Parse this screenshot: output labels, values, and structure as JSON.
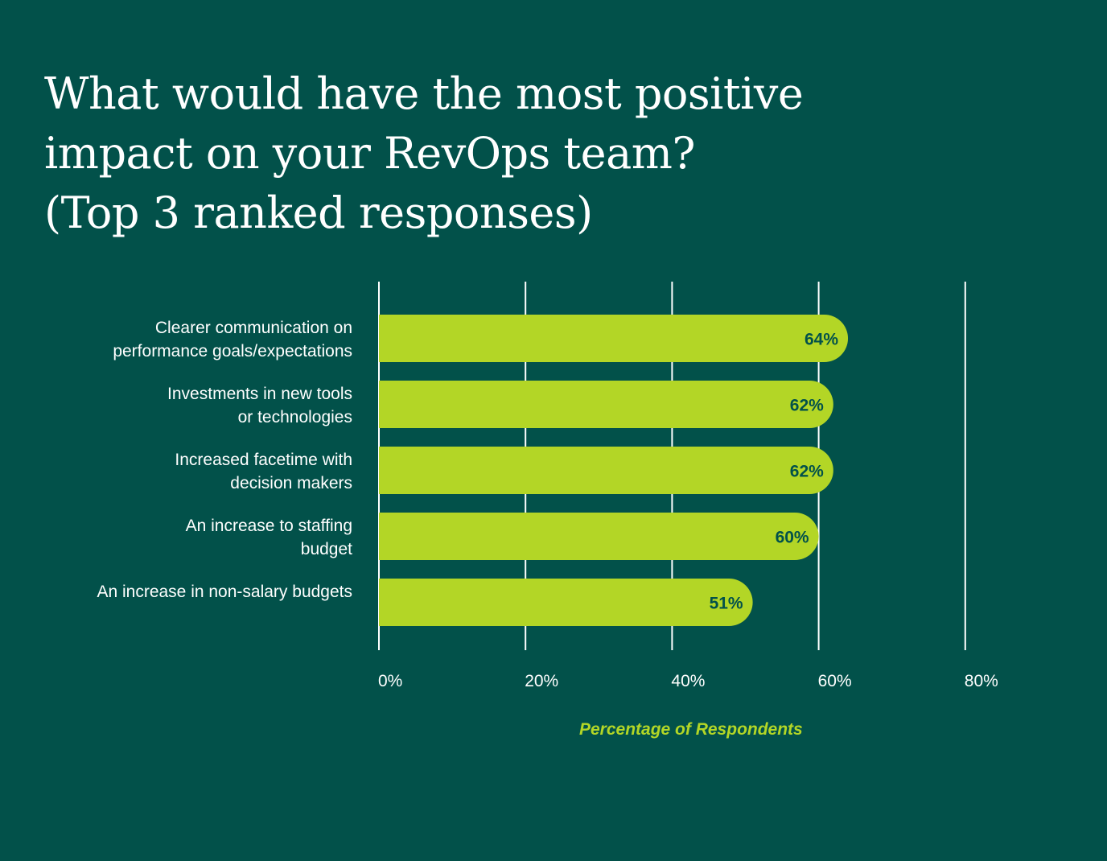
{
  "title_lines": [
    "What would have the most positive",
    "impact on your RevOps team?",
    "(Top 3 ranked responses)"
  ],
  "chart_data": {
    "type": "bar",
    "orientation": "horizontal",
    "title": "What would have the most positive impact on your RevOps team? (Top 3 ranked responses)",
    "categories": [
      [
        "Clearer communication on",
        "performance goals/expectations"
      ],
      [
        "Investments in new tools",
        "or technologies"
      ],
      [
        "Increased facetime with",
        "decision makers"
      ],
      [
        "An increase to staffing",
        "budget"
      ],
      [
        "An increase in non-salary budgets"
      ]
    ],
    "values": [
      64,
      62,
      62,
      60,
      51
    ],
    "value_labels": [
      "64%",
      "62%",
      "62%",
      "60%",
      "51%"
    ],
    "xlim": [
      0,
      80
    ],
    "ticks": [
      0,
      20,
      40,
      60,
      80
    ],
    "tick_labels": [
      "0%",
      "20%",
      "40%",
      "60%",
      "80%"
    ],
    "xlabel": "Percentage of Respondents",
    "ylabel": "",
    "grid": true,
    "colors": {
      "background": "#02514a",
      "bar": "#b3d626",
      "value_label": "#02514a",
      "text": "#ffffff",
      "grid": "#ffffff",
      "axis_title": "#b3d626"
    }
  }
}
